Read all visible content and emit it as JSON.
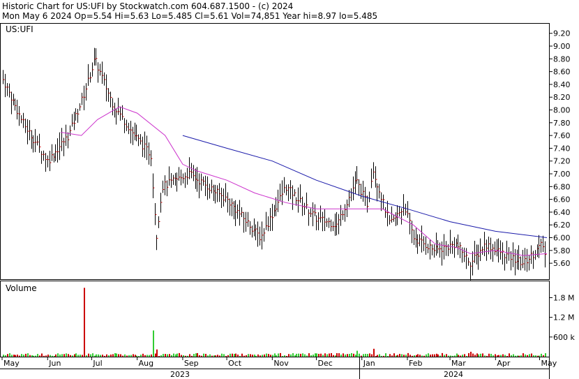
{
  "header": {
    "line1": "Historic Chart for US:UFI by Stockwatch.com 604.687.1500 - (c) 2024",
    "line2": "Mon May  6 2024   Op=5.54  Hi=5.63  Lo=5.485  Cl=5.61  Vol=74,851  Year hi=8.97  lo=5.485"
  },
  "chart_data": [
    {
      "type": "ohlc",
      "title": "US:UFI",
      "ylim": [
        5.35,
        9.35
      ],
      "y_ticks": [
        "9.20",
        "9.00",
        "8.80",
        "8.60",
        "8.40",
        "8.20",
        "8.00",
        "7.80",
        "7.60",
        "7.40",
        "7.20",
        "7.00",
        "6.80",
        "6.60",
        "6.40",
        "6.20",
        "6.00",
        "5.80",
        "5.60"
      ],
      "x_month_labels": [
        "May",
        "Jun",
        "Jul",
        "Aug",
        "Sep",
        "Oct",
        "Nov",
        "Dec",
        "Jan",
        "Feb",
        "Mar",
        "Apr",
        "May"
      ],
      "x_year_labels": [
        "2023",
        "2024"
      ],
      "grid": false,
      "key_points": [
        {
          "date": "2023-05-01",
          "close": 8.5
        },
        {
          "date": "2023-05-15",
          "close": 7.8
        },
        {
          "date": "2023-06-01",
          "close": 7.2
        },
        {
          "date": "2023-06-15",
          "close": 7.6
        },
        {
          "date": "2023-06-25",
          "close": 8.2
        },
        {
          "date": "2023-07-03",
          "close": 8.8
        },
        {
          "date": "2023-07-15",
          "close": 8.1
        },
        {
          "date": "2023-07-30",
          "close": 7.6
        },
        {
          "date": "2023-08-10",
          "close": 7.3
        },
        {
          "date": "2023-08-14",
          "close": 6.0
        },
        {
          "date": "2023-08-18",
          "close": 6.8
        },
        {
          "date": "2023-09-05",
          "close": 7.0
        },
        {
          "date": "2023-10-01",
          "close": 6.6
        },
        {
          "date": "2023-10-24",
          "close": 6.0
        },
        {
          "date": "2023-11-10",
          "close": 6.8
        },
        {
          "date": "2023-12-01",
          "close": 6.3
        },
        {
          "date": "2023-12-15",
          "close": 6.2
        },
        {
          "date": "2023-12-28",
          "close": 6.9
        },
        {
          "date": "2024-01-05",
          "close": 6.5
        },
        {
          "date": "2024-01-08",
          "close": 7.1
        },
        {
          "date": "2024-01-20",
          "close": 6.2
        },
        {
          "date": "2024-01-30",
          "close": 6.5
        },
        {
          "date": "2024-02-05",
          "close": 6.0
        },
        {
          "date": "2024-02-20",
          "close": 5.8
        },
        {
          "date": "2024-03-05",
          "close": 5.9
        },
        {
          "date": "2024-03-15",
          "close": 5.6
        },
        {
          "date": "2024-03-25",
          "close": 5.9
        },
        {
          "date": "2024-04-10",
          "close": 5.7
        },
        {
          "date": "2024-04-20",
          "close": 5.6
        },
        {
          "date": "2024-05-03",
          "close": 5.9
        },
        {
          "date": "2024-05-06",
          "close": 5.61
        }
      ],
      "ma_short": {
        "color": "#cc33cc",
        "points": [
          {
            "date": "2023-06-10",
            "v": 7.65
          },
          {
            "date": "2023-06-24",
            "v": 7.6
          },
          {
            "date": "2023-07-05",
            "v": 7.85
          },
          {
            "date": "2023-07-20",
            "v": 8.05
          },
          {
            "date": "2023-08-01",
            "v": 7.95
          },
          {
            "date": "2023-08-20",
            "v": 7.6
          },
          {
            "date": "2023-09-01",
            "v": 7.15
          },
          {
            "date": "2023-09-10",
            "v": 7.05
          },
          {
            "date": "2023-10-01",
            "v": 6.9
          },
          {
            "date": "2023-10-20",
            "v": 6.7
          },
          {
            "date": "2023-11-10",
            "v": 6.55
          },
          {
            "date": "2023-12-01",
            "v": 6.45
          },
          {
            "date": "2023-12-25",
            "v": 6.45
          },
          {
            "date": "2024-01-15",
            "v": 6.45
          },
          {
            "date": "2024-02-05",
            "v": 6.2
          },
          {
            "date": "2024-02-20",
            "v": 5.9
          },
          {
            "date": "2024-03-05",
            "v": 5.85
          },
          {
            "date": "2024-03-15",
            "v": 5.75
          },
          {
            "date": "2024-04-01",
            "v": 5.8
          },
          {
            "date": "2024-04-20",
            "v": 5.72
          },
          {
            "date": "2024-05-06",
            "v": 5.75
          }
        ]
      },
      "ma_long": {
        "color": "#1a1aaa",
        "points": [
          {
            "date": "2023-09-01",
            "v": 7.6
          },
          {
            "date": "2023-10-01",
            "v": 7.4
          },
          {
            "date": "2023-11-01",
            "v": 7.2
          },
          {
            "date": "2023-12-01",
            "v": 6.9
          },
          {
            "date": "2024-01-01",
            "v": 6.65
          },
          {
            "date": "2024-02-01",
            "v": 6.45
          },
          {
            "date": "2024-03-01",
            "v": 6.25
          },
          {
            "date": "2024-04-01",
            "v": 6.1
          },
          {
            "date": "2024-05-06",
            "v": 6.0
          }
        ]
      }
    },
    {
      "type": "bar",
      "title": "Volume",
      "ylim": [
        0,
        2300000
      ],
      "y_ticks": [
        "1.8 M",
        "1.2 M",
        "600 k"
      ],
      "spikes": [
        {
          "date": "2023-06-25",
          "volume": 2100000
        },
        {
          "date": "2023-08-12",
          "volume": 800000
        },
        {
          "date": "2023-08-14",
          "volume": 220000
        },
        {
          "date": "2023-12-28",
          "volume": 180000
        },
        {
          "date": "2024-01-08",
          "volume": 240000
        },
        {
          "date": "2024-03-15",
          "volume": 150000
        }
      ]
    }
  ]
}
